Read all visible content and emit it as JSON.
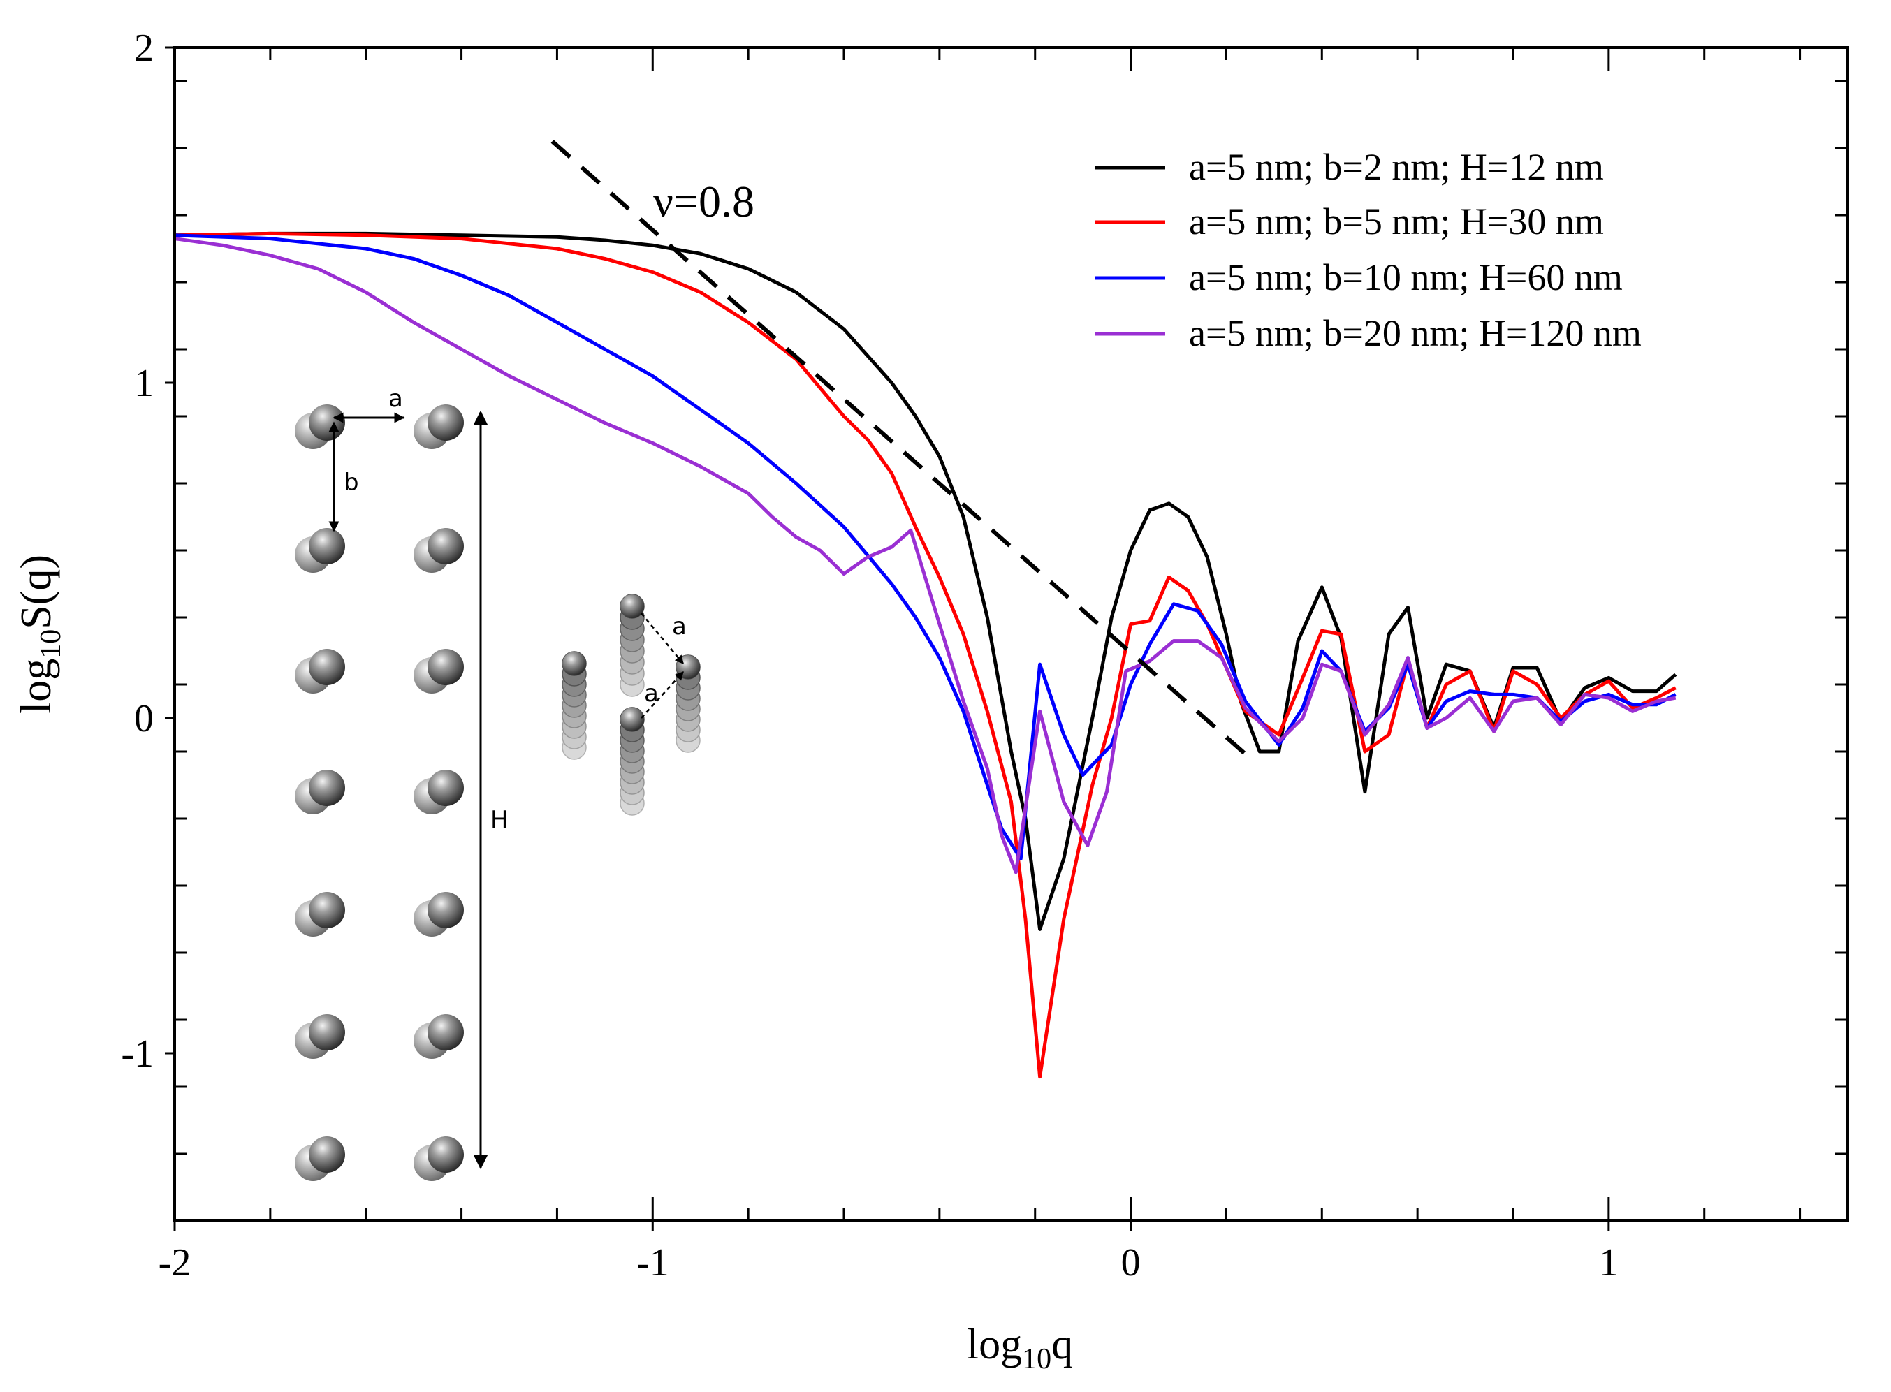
{
  "chart_data": {
    "type": "line",
    "title": "",
    "xlabel": "log",
    "xlabel_sub": "10",
    "xlabel_suffix": "q",
    "ylabel": "log",
    "ylabel_sub": "10",
    "ylabel_suffix": "S(q)",
    "xlim": [
      -2,
      1.5
    ],
    "ylim": [
      -1.5,
      2
    ],
    "xticks": [
      {
        "value": -2,
        "label": "-2"
      },
      {
        "value": -1,
        "label": "-1"
      },
      {
        "value": 0,
        "label": "0"
      },
      {
        "value": 1,
        "label": "1"
      }
    ],
    "yticks": [
      {
        "value": 2,
        "label": "2"
      },
      {
        "value": 1,
        "label": "1"
      },
      {
        "value": 0,
        "label": "0"
      },
      {
        "value": -1,
        "label": "-1"
      }
    ],
    "x_minor_step": 0.2,
    "y_minor_step": 0.2,
    "grid": false,
    "legend_position": "top-right",
    "series": [
      {
        "name": "a=5 nm; b=2 nm; H=12 nm",
        "color": "#000000",
        "points": [
          [
            -2,
            1.44
          ],
          [
            -1.8,
            1.445
          ],
          [
            -1.6,
            1.445
          ],
          [
            -1.4,
            1.44
          ],
          [
            -1.2,
            1.435
          ],
          [
            -1.1,
            1.425
          ],
          [
            -1.0,
            1.41
          ],
          [
            -0.9,
            1.385
          ],
          [
            -0.8,
            1.34
          ],
          [
            -0.7,
            1.27
          ],
          [
            -0.6,
            1.16
          ],
          [
            -0.5,
            1.0
          ],
          [
            -0.45,
            0.9
          ],
          [
            -0.4,
            0.78
          ],
          [
            -0.35,
            0.6
          ],
          [
            -0.3,
            0.3
          ],
          [
            -0.25,
            -0.1
          ],
          [
            -0.22,
            -0.3
          ],
          [
            -0.19,
            -0.63
          ],
          [
            -0.14,
            -0.42
          ],
          [
            -0.08,
            0.0
          ],
          [
            -0.04,
            0.3
          ],
          [
            0.0,
            0.5
          ],
          [
            0.04,
            0.62
          ],
          [
            0.08,
            0.64
          ],
          [
            0.12,
            0.6
          ],
          [
            0.16,
            0.48
          ],
          [
            0.2,
            0.25
          ],
          [
            0.23,
            0.05
          ],
          [
            0.27,
            -0.1
          ],
          [
            0.31,
            -0.1
          ],
          [
            0.35,
            0.23
          ],
          [
            0.4,
            0.39
          ],
          [
            0.44,
            0.24
          ],
          [
            0.49,
            -0.22
          ],
          [
            0.54,
            0.25
          ],
          [
            0.58,
            0.33
          ],
          [
            0.62,
            0.0
          ],
          [
            0.66,
            0.16
          ],
          [
            0.71,
            0.14
          ],
          [
            0.76,
            -0.03
          ],
          [
            0.8,
            0.15
          ],
          [
            0.85,
            0.15
          ],
          [
            0.9,
            -0.01
          ],
          [
            0.95,
            0.09
          ],
          [
            1.0,
            0.12
          ],
          [
            1.05,
            0.08
          ],
          [
            1.1,
            0.08
          ],
          [
            1.14,
            0.13
          ]
        ]
      },
      {
        "name": "a=5 nm; b=5 nm; H=30 nm",
        "color": "#ff0000",
        "points": [
          [
            -2,
            1.44
          ],
          [
            -1.8,
            1.445
          ],
          [
            -1.6,
            1.44
          ],
          [
            -1.4,
            1.43
          ],
          [
            -1.2,
            1.4
          ],
          [
            -1.1,
            1.37
          ],
          [
            -1.0,
            1.33
          ],
          [
            -0.9,
            1.27
          ],
          [
            -0.8,
            1.18
          ],
          [
            -0.7,
            1.07
          ],
          [
            -0.6,
            0.9
          ],
          [
            -0.55,
            0.83
          ],
          [
            -0.5,
            0.73
          ],
          [
            -0.45,
            0.57
          ],
          [
            -0.4,
            0.42
          ],
          [
            -0.35,
            0.25
          ],
          [
            -0.3,
            0.02
          ],
          [
            -0.25,
            -0.25
          ],
          [
            -0.22,
            -0.6
          ],
          [
            -0.19,
            -1.07
          ],
          [
            -0.14,
            -0.6
          ],
          [
            -0.08,
            -0.2
          ],
          [
            -0.04,
            0.0
          ],
          [
            0.0,
            0.28
          ],
          [
            0.04,
            0.29
          ],
          [
            0.08,
            0.42
          ],
          [
            0.12,
            0.38
          ],
          [
            0.16,
            0.28
          ],
          [
            0.2,
            0.15
          ],
          [
            0.24,
            0.02
          ],
          [
            0.31,
            -0.05
          ],
          [
            0.36,
            0.12
          ],
          [
            0.4,
            0.26
          ],
          [
            0.44,
            0.25
          ],
          [
            0.49,
            -0.1
          ],
          [
            0.54,
            -0.05
          ],
          [
            0.58,
            0.17
          ],
          [
            0.62,
            -0.03
          ],
          [
            0.66,
            0.1
          ],
          [
            0.71,
            0.14
          ],
          [
            0.76,
            -0.04
          ],
          [
            0.8,
            0.14
          ],
          [
            0.85,
            0.1
          ],
          [
            0.9,
            0.0
          ],
          [
            0.95,
            0.07
          ],
          [
            1.0,
            0.11
          ],
          [
            1.05,
            0.03
          ],
          [
            1.1,
            0.06
          ],
          [
            1.14,
            0.09
          ]
        ]
      },
      {
        "name": "a=5 nm; b=10 nm; H=60 nm",
        "color": "#0000ff",
        "points": [
          [
            -2,
            1.44
          ],
          [
            -1.8,
            1.43
          ],
          [
            -1.6,
            1.4
          ],
          [
            -1.5,
            1.37
          ],
          [
            -1.4,
            1.32
          ],
          [
            -1.3,
            1.26
          ],
          [
            -1.2,
            1.18
          ],
          [
            -1.1,
            1.1
          ],
          [
            -1.0,
            1.02
          ],
          [
            -0.9,
            0.92
          ],
          [
            -0.8,
            0.82
          ],
          [
            -0.7,
            0.7
          ],
          [
            -0.6,
            0.57
          ],
          [
            -0.5,
            0.4
          ],
          [
            -0.45,
            0.3
          ],
          [
            -0.4,
            0.18
          ],
          [
            -0.35,
            0.02
          ],
          [
            -0.3,
            -0.2
          ],
          [
            -0.27,
            -0.33
          ],
          [
            -0.23,
            -0.42
          ],
          [
            -0.19,
            0.16
          ],
          [
            -0.14,
            -0.05
          ],
          [
            -0.1,
            -0.17
          ],
          [
            -0.04,
            -0.08
          ],
          [
            0.0,
            0.1
          ],
          [
            0.04,
            0.22
          ],
          [
            0.09,
            0.34
          ],
          [
            0.14,
            0.32
          ],
          [
            0.19,
            0.22
          ],
          [
            0.24,
            0.05
          ],
          [
            0.31,
            -0.08
          ],
          [
            0.36,
            0.03
          ],
          [
            0.4,
            0.2
          ],
          [
            0.44,
            0.14
          ],
          [
            0.49,
            -0.04
          ],
          [
            0.54,
            0.03
          ],
          [
            0.58,
            0.16
          ],
          [
            0.62,
            -0.03
          ],
          [
            0.66,
            0.05
          ],
          [
            0.71,
            0.08
          ],
          [
            0.76,
            0.07
          ],
          [
            0.8,
            0.07
          ],
          [
            0.85,
            0.06
          ],
          [
            0.9,
            -0.01
          ],
          [
            0.95,
            0.05
          ],
          [
            1.0,
            0.07
          ],
          [
            1.05,
            0.04
          ],
          [
            1.1,
            0.04
          ],
          [
            1.14,
            0.07
          ]
        ]
      },
      {
        "name": "a=5 nm; b=20 nm; H=120 nm",
        "color": "#9a2fd3",
        "points": [
          [
            -2,
            1.43
          ],
          [
            -1.9,
            1.41
          ],
          [
            -1.8,
            1.38
          ],
          [
            -1.7,
            1.34
          ],
          [
            -1.6,
            1.27
          ],
          [
            -1.5,
            1.18
          ],
          [
            -1.4,
            1.1
          ],
          [
            -1.3,
            1.02
          ],
          [
            -1.2,
            0.95
          ],
          [
            -1.1,
            0.88
          ],
          [
            -1.0,
            0.82
          ],
          [
            -0.9,
            0.75
          ],
          [
            -0.8,
            0.67
          ],
          [
            -0.75,
            0.6
          ],
          [
            -0.7,
            0.54
          ],
          [
            -0.65,
            0.5
          ],
          [
            -0.6,
            0.43
          ],
          [
            -0.55,
            0.48
          ],
          [
            -0.5,
            0.51
          ],
          [
            -0.46,
            0.56
          ],
          [
            -0.4,
            0.28
          ],
          [
            -0.35,
            0.05
          ],
          [
            -0.3,
            -0.15
          ],
          [
            -0.27,
            -0.35
          ],
          [
            -0.24,
            -0.46
          ],
          [
            -0.19,
            0.02
          ],
          [
            -0.14,
            -0.25
          ],
          [
            -0.09,
            -0.38
          ],
          [
            -0.05,
            -0.22
          ],
          [
            -0.01,
            0.14
          ],
          [
            0.04,
            0.17
          ],
          [
            0.09,
            0.23
          ],
          [
            0.14,
            0.23
          ],
          [
            0.19,
            0.18
          ],
          [
            0.24,
            0.03
          ],
          [
            0.31,
            -0.07
          ],
          [
            0.36,
            0.0
          ],
          [
            0.4,
            0.16
          ],
          [
            0.44,
            0.14
          ],
          [
            0.49,
            -0.05
          ],
          [
            0.54,
            0.04
          ],
          [
            0.58,
            0.18
          ],
          [
            0.62,
            -0.03
          ],
          [
            0.66,
            0.0
          ],
          [
            0.71,
            0.06
          ],
          [
            0.76,
            -0.04
          ],
          [
            0.8,
            0.05
          ],
          [
            0.85,
            0.06
          ],
          [
            0.9,
            -0.02
          ],
          [
            0.95,
            0.07
          ],
          [
            1.0,
            0.06
          ],
          [
            1.05,
            0.02
          ],
          [
            1.1,
            0.05
          ],
          [
            1.14,
            0.06
          ]
        ]
      }
    ],
    "fit_line": {
      "label": "ν=0.8",
      "points": [
        [
          -1.21,
          1.72
        ],
        [
          0.25,
          -0.12
        ]
      ]
    },
    "inset": {
      "label_a": "a",
      "label_b": "b",
      "label_H": "H"
    }
  }
}
